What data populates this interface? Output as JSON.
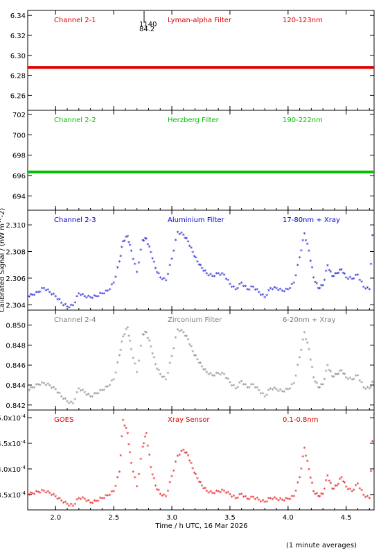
{
  "chart_data": {
    "type": "scatter",
    "xlabel": "Time / h UTC, 16 Mar 2026",
    "ylabel": "Calibrated Signal / (nW m^-2)",
    "footnote": "(1 minute averages)",
    "xlim": [
      1.76,
      4.74
    ],
    "xticks": [
      2.0,
      2.5,
      3.0,
      3.5,
      4.0,
      4.5
    ],
    "xtick_labels": [
      "2.0",
      "2.5",
      "3.0",
      "3.5",
      "4.0",
      "4.5"
    ],
    "panels": [
      {
        "id": "ch21",
        "labels": [
          "Channel 2-1",
          "Lyman-alpha Filter",
          "120-123nm"
        ],
        "color": "#e00000",
        "ylim": [
          6.245,
          6.345
        ],
        "yticks": [
          6.26,
          6.28,
          6.3,
          6.32,
          6.34
        ],
        "ytick_labels": [
          "6.26",
          "6.28",
          "6.30",
          "6.32",
          "6.34"
        ],
        "annotations": [
          "1140",
          "84.2"
        ],
        "series": [
          {
            "x": [
              1.76,
              4.74
            ],
            "y": [
              6.288,
              6.288
            ],
            "mode": "flat"
          }
        ]
      },
      {
        "id": "ch22",
        "labels": [
          "Channel 2-2",
          "Herzberg Filter",
          "190-222nm"
        ],
        "color": "#00c000",
        "ylim": [
          692.6,
          702.4
        ],
        "yticks": [
          694,
          696,
          698,
          700,
          702
        ],
        "ytick_labels": [
          "694",
          "696",
          "698",
          "700",
          "702"
        ],
        "series": [
          {
            "x": [
              1.76,
              4.74
            ],
            "y": [
              696.35,
              696.35
            ],
            "mode": "flat"
          }
        ]
      },
      {
        "id": "ch23",
        "labels": [
          "Channel 2-3",
          "Aluminium Filter",
          "17-80nm + Xray"
        ],
        "color": "#0000d0",
        "ylim": [
          2.3036,
          2.3111
        ],
        "yticks": [
          2.304,
          2.306,
          2.308,
          2.31
        ],
        "ytick_labels": [
          "2.304",
          "2.306",
          "2.308",
          "2.310"
        ],
        "series": [
          {
            "x": [
              1.76,
              1.8,
              1.85,
              1.9,
              1.95,
              2.0,
              2.05,
              2.1,
              2.15,
              2.2,
              2.25,
              2.3,
              2.35,
              2.4,
              2.45,
              2.5,
              2.55,
              2.58,
              2.62,
              2.65,
              2.7,
              2.75,
              2.78,
              2.82,
              2.86,
              2.9,
              2.95,
              3.0,
              3.05,
              3.1,
              3.14,
              3.18,
              3.22,
              3.26,
              3.3,
              3.35,
              3.4,
              3.45,
              3.5,
              3.55,
              3.6,
              3.65,
              3.7,
              3.75,
              3.8,
              3.85,
              3.9,
              3.95,
              4.0,
              4.05,
              4.1,
              4.14,
              4.18,
              4.22,
              4.26,
              4.3,
              4.34,
              4.38,
              4.42,
              4.46,
              4.5,
              4.55,
              4.6,
              4.65,
              4.7,
              4.74
            ],
            "y": [
              2.3046,
              2.3047,
              2.3049,
              2.3052,
              2.3049,
              2.3046,
              2.3041,
              2.3038,
              2.3039,
              2.3048,
              2.3046,
              2.3045,
              2.3046,
              2.3048,
              2.305,
              2.3056,
              2.3072,
              2.3087,
              2.3091,
              2.308,
              2.3064,
              2.3088,
              2.3089,
              2.3079,
              2.3067,
              2.306,
              2.3058,
              2.3074,
              2.3094,
              2.3092,
              2.3087,
              2.3079,
              2.3072,
              2.3067,
              2.3063,
              2.3061,
              2.3063,
              2.3062,
              2.3055,
              2.3051,
              2.3056,
              2.3051,
              2.3053,
              2.3049,
              2.3045,
              2.3052,
              2.3052,
              2.305,
              2.3051,
              2.3056,
              2.3075,
              2.3093,
              2.308,
              2.306,
              2.3052,
              2.3054,
              2.3069,
              2.3061,
              2.3063,
              2.3066,
              2.306,
              2.3059,
              2.3062,
              2.3053,
              2.3051,
              2.3111
            ]
          }
        ]
      },
      {
        "id": "ch24",
        "labels": [
          "Channel 2-4",
          "Zirconium Filter",
          "6-20nm + Xray"
        ],
        "color": "#7f7f7f",
        "ylim": [
          0.8415,
          0.8515
        ],
        "yticks": [
          0.842,
          0.844,
          0.846,
          0.848,
          0.85
        ],
        "ytick_labels": [
          "0.842",
          "0.844",
          "0.846",
          "0.848",
          "0.850"
        ],
        "series": [
          {
            "x": [
              1.76,
              1.8,
              1.85,
              1.9,
              1.95,
              2.0,
              2.05,
              2.1,
              2.15,
              2.2,
              2.25,
              2.3,
              2.35,
              2.4,
              2.45,
              2.5,
              2.55,
              2.58,
              2.62,
              2.65,
              2.7,
              2.75,
              2.78,
              2.82,
              2.86,
              2.9,
              2.95,
              3.0,
              3.05,
              3.1,
              3.14,
              3.18,
              3.22,
              3.26,
              3.3,
              3.35,
              3.4,
              3.45,
              3.5,
              3.55,
              3.6,
              3.65,
              3.7,
              3.75,
              3.8,
              3.85,
              3.9,
              3.95,
              4.0,
              4.05,
              4.1,
              4.14,
              4.18,
              4.22,
              4.26,
              4.3,
              4.34,
              4.38,
              4.42,
              4.46,
              4.5,
              4.55,
              4.6,
              4.65,
              4.7,
              4.74
            ],
            "y": [
              0.8434,
              0.8437,
              0.844,
              0.8441,
              0.8439,
              0.8435,
              0.8428,
              0.8423,
              0.8421,
              0.8436,
              0.8432,
              0.8428,
              0.8431,
              0.8434,
              0.8438,
              0.8445,
              0.8469,
              0.8488,
              0.8497,
              0.8475,
              0.8452,
              0.849,
              0.8492,
              0.8478,
              0.846,
              0.845,
              0.8445,
              0.8468,
              0.8495,
              0.8492,
              0.8485,
              0.8473,
              0.8465,
              0.8458,
              0.8452,
              0.8449,
              0.8451,
              0.845,
              0.8442,
              0.8436,
              0.8443,
              0.8437,
              0.844,
              0.8434,
              0.8428,
              0.8436,
              0.8435,
              0.8433,
              0.8435,
              0.8441,
              0.8467,
              0.8492,
              0.8475,
              0.8447,
              0.8437,
              0.844,
              0.8459,
              0.8448,
              0.845,
              0.8454,
              0.8447,
              0.8445,
              0.8449,
              0.8437,
              0.8436,
              0.8444
            ]
          }
        ]
      },
      {
        "id": "goes",
        "labels": [
          "GOES",
          "Xray Sensor",
          "0.1-0.8nm"
        ],
        "color": "#e00000",
        "ylim": [
          0.00032,
          0.000515
        ],
        "yticks": [
          0.00035,
          0.0004,
          0.00045,
          0.0005
        ],
        "ytick_labels": [
          "3.5x10^-4",
          "4.0x10^-4",
          "4.5x10^-4",
          "5.0x10^-4"
        ],
        "series": [
          {
            "x": [
              1.76,
              1.8,
              1.85,
              1.9,
              1.95,
              2.0,
              2.05,
              2.1,
              2.15,
              2.2,
              2.25,
              2.3,
              2.35,
              2.4,
              2.45,
              2.5,
              2.55,
              2.58,
              2.62,
              2.65,
              2.7,
              2.75,
              2.78,
              2.82,
              2.86,
              2.9,
              2.95,
              3.0,
              3.05,
              3.1,
              3.14,
              3.18,
              3.22,
              3.26,
              3.3,
              3.35,
              3.4,
              3.45,
              3.5,
              3.55,
              3.6,
              3.65,
              3.7,
              3.75,
              3.8,
              3.85,
              3.9,
              3.95,
              4.0,
              4.05,
              4.1,
              4.14,
              4.18,
              4.22,
              4.26,
              4.3,
              4.34,
              4.38,
              4.42,
              4.46,
              4.5,
              4.55,
              4.6,
              4.65,
              4.7,
              4.74
            ],
            "y": [
              0.00035,
              0.000351,
              0.000354,
              0.000356,
              0.000352,
              0.000345,
              0.000337,
              0.00033,
              0.000327,
              0.000342,
              0.00034,
              0.000333,
              0.000336,
              0.000342,
              0.000347,
              0.000355,
              0.000393,
              0.000494,
              0.000468,
              0.00041,
              0.000365,
              0.000442,
              0.000468,
              0.000402,
              0.000366,
              0.00035,
              0.000345,
              0.000384,
              0.000424,
              0.000436,
              0.000425,
              0.0004,
              0.00038,
              0.000366,
              0.000356,
              0.000352,
              0.000355,
              0.000356,
              0.000349,
              0.000342,
              0.00035,
              0.00034,
              0.000344,
              0.000338,
              0.000334,
              0.000342,
              0.00034,
              0.000338,
              0.00034,
              0.000346,
              0.000382,
              0.00044,
              0.000398,
              0.000355,
              0.000346,
              0.00035,
              0.000386,
              0.00036,
              0.000366,
              0.000382,
              0.000364,
              0.000355,
              0.00037,
              0.000348,
              0.000342,
              0.000505
            ]
          }
        ]
      }
    ]
  }
}
